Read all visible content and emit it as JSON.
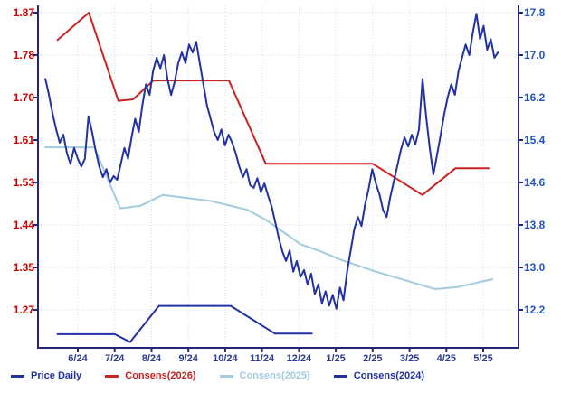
{
  "chart_data": {
    "type": "line",
    "title": "",
    "x_ticks": [
      "6/24",
      "7/24",
      "8/24",
      "9/24",
      "10/24",
      "11/24",
      "12/24",
      "1/25",
      "2/25",
      "3/25",
      "4/25",
      "5/25"
    ],
    "left_axis": {
      "ticks": [
        "1.87",
        "1.78",
        "1.70",
        "1.61",
        "1.53",
        "1.44",
        "1.35",
        "1.27"
      ],
      "color": "#d40000",
      "range": [
        1.27,
        1.87
      ]
    },
    "right_axis": {
      "ticks": [
        "17.8",
        "17.0",
        "16.2",
        "15.4",
        "14.6",
        "13.8",
        "13.0",
        "12.2"
      ],
      "color": "#2553c4",
      "range": [
        12.2,
        17.8
      ]
    },
    "x_axis_color": "#2b3a95",
    "colors": {
      "grid": "#c9def0",
      "border": "#24247a",
      "background": "#ffffff"
    },
    "grid": "dotted",
    "legend_position": "bottom",
    "series": [
      {
        "name": "Consens(2024)",
        "axis": "left",
        "color": "#2231a4",
        "width": 2,
        "points": [
          [
            0.45,
            1.221
          ],
          [
            2.0,
            1.221
          ],
          [
            2.42,
            1.205
          ],
          [
            3.2,
            1.278
          ],
          [
            5.15,
            1.278
          ],
          [
            6.35,
            1.222
          ],
          [
            7.35,
            1.222
          ]
        ]
      },
      {
        "name": "Consens(2025)",
        "axis": "left",
        "color": "#a3cbdf",
        "width": 2,
        "points": [
          [
            0.12,
            1.598
          ],
          [
            1.45,
            1.598
          ],
          [
            2.15,
            1.475
          ],
          [
            2.7,
            1.48
          ],
          [
            3.3,
            1.502
          ],
          [
            4.6,
            1.49
          ],
          [
            5.6,
            1.472
          ],
          [
            6.1,
            1.452
          ],
          [
            7.05,
            1.402
          ],
          [
            7.6,
            1.388
          ],
          [
            8.1,
            1.372
          ],
          [
            9.1,
            1.347
          ],
          [
            10.1,
            1.325
          ],
          [
            10.7,
            1.312
          ],
          [
            11.3,
            1.316
          ],
          [
            12.25,
            1.332
          ]
        ]
      },
      {
        "name": "Consens(2026)",
        "axis": "left",
        "color": "#cc2222",
        "width": 2,
        "points": [
          [
            0.45,
            1.815
          ],
          [
            1.3,
            1.87
          ],
          [
            2.1,
            1.692
          ],
          [
            2.5,
            1.695
          ],
          [
            3.05,
            1.733
          ],
          [
            5.1,
            1.733
          ],
          [
            6.1,
            1.565
          ],
          [
            9.0,
            1.565
          ],
          [
            10.35,
            1.502
          ],
          [
            11.25,
            1.556
          ],
          [
            12.15,
            1.556
          ]
        ]
      },
      {
        "name": "Price Daily",
        "axis": "right",
        "color": "#2231a4",
        "width": 2,
        "x_start": 0.12,
        "x_end": 12.4,
        "values": [
          16.55,
          16.25,
          15.9,
          15.6,
          15.35,
          15.5,
          15.15,
          14.95,
          15.25,
          15.05,
          14.9,
          15.05,
          15.85,
          15.55,
          15.2,
          14.9,
          14.7,
          14.85,
          14.6,
          14.72,
          14.65,
          14.95,
          15.25,
          15.05,
          15.45,
          15.8,
          15.55,
          16.05,
          16.45,
          16.25,
          16.7,
          16.95,
          16.75,
          17.0,
          16.55,
          16.25,
          16.5,
          16.85,
          17.05,
          16.85,
          17.2,
          17.05,
          17.25,
          16.85,
          16.45,
          16.05,
          15.8,
          15.55,
          15.4,
          15.6,
          15.3,
          15.5,
          15.35,
          15.15,
          14.9,
          14.7,
          14.85,
          14.55,
          14.5,
          14.68,
          14.42,
          14.58,
          14.35,
          14.15,
          13.85,
          13.55,
          13.3,
          13.12,
          13.32,
          12.92,
          13.12,
          12.82,
          12.95,
          12.68,
          12.88,
          12.5,
          12.68,
          12.32,
          12.55,
          12.28,
          12.48,
          12.22,
          12.62,
          12.38,
          12.92,
          13.32,
          13.72,
          13.95,
          13.78,
          14.18,
          14.48,
          14.85,
          14.58,
          14.38,
          14.08,
          13.95,
          14.32,
          14.62,
          14.92,
          15.22,
          15.45,
          15.28,
          15.5,
          15.32,
          15.6,
          16.55,
          15.85,
          15.25,
          14.75,
          15.1,
          15.48,
          15.88,
          16.2,
          16.45,
          16.25,
          16.7,
          16.95,
          17.2,
          17.0,
          17.42,
          17.78,
          17.3,
          17.55,
          17.1,
          17.3,
          16.95,
          17.05
        ]
      }
    ],
    "legend": [
      {
        "label": "Price Daily",
        "color": "#2231a4"
      },
      {
        "label": "Consens(2026)",
        "color": "#cc2222"
      },
      {
        "label": "Consens(2025)",
        "color": "#a3cbdf"
      },
      {
        "label": "Consens(2024)",
        "color": "#2231a4"
      }
    ]
  }
}
